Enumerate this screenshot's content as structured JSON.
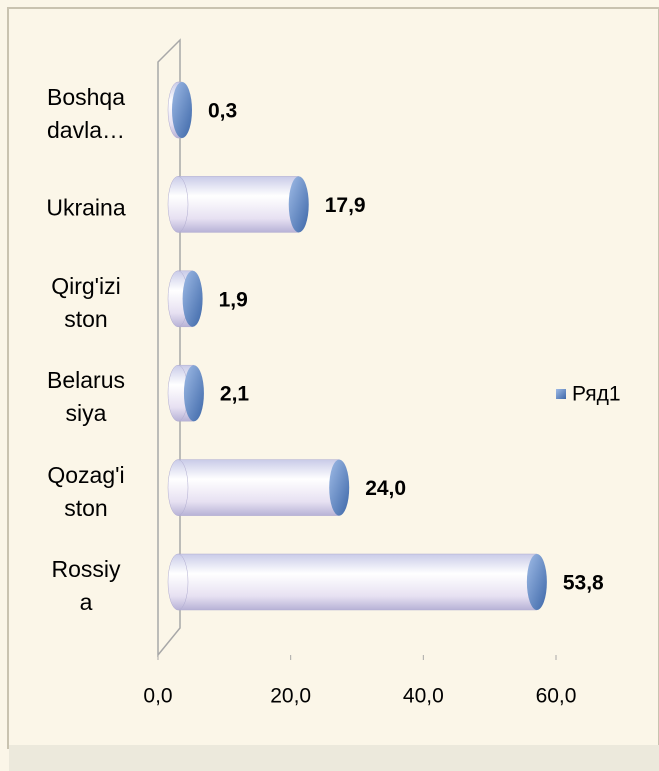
{
  "chart_data": {
    "type": "bar3d",
    "categories": [
      "Boshqa\ndavla…",
      "Ukraina",
      "Qirg'izi\nston",
      "Belarus\nsiya",
      "Qozag'i\nston",
      "Rossiy\na"
    ],
    "values": [
      0.3,
      17.9,
      1.9,
      2.1,
      24.0,
      53.8
    ],
    "value_labels": [
      "0,3",
      "17,9",
      "1,9",
      "2,1",
      "24,0",
      "53,8"
    ],
    "xlim": [
      0,
      60
    ],
    "xticks": [
      {
        "value": 0,
        "label": "0,0"
      },
      {
        "value": 20,
        "label": "20,0"
      },
      {
        "value": 40,
        "label": "40,0"
      },
      {
        "value": 60,
        "label": "60,0"
      }
    ],
    "series_name": "Ряд1",
    "color": "#5b86c6",
    "legend": "right"
  }
}
